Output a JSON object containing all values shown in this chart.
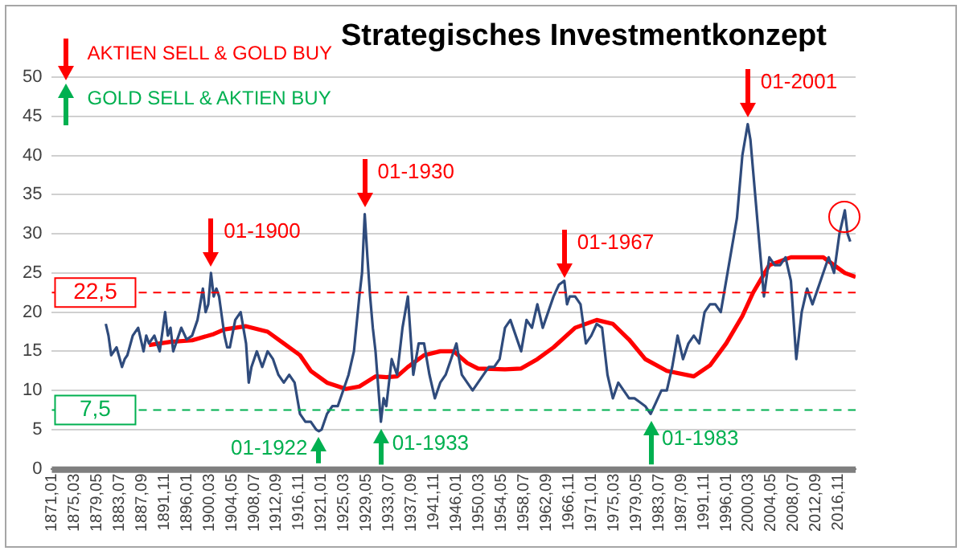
{
  "chart_data": {
    "type": "line",
    "title": "Strategisches Investmentkonzept",
    "xlim": [
      "1871-01",
      "2020-01"
    ],
    "xticks": [
      {
        "value": "1871-01",
        "label": "1871,01"
      },
      {
        "value": "1875-03",
        "label": "1875,03"
      },
      {
        "value": "1879-05",
        "label": "1879,05"
      },
      {
        "value": "1883-07",
        "label": "1883,07"
      },
      {
        "value": "1887-09",
        "label": "1887,09"
      },
      {
        "value": "1891-11",
        "label": "1891,11"
      },
      {
        "value": "1896-01",
        "label": "1896,01"
      },
      {
        "value": "1900-03",
        "label": "1900,03"
      },
      {
        "value": "1904-05",
        "label": "1904,05"
      },
      {
        "value": "1908-07",
        "label": "1908,07"
      },
      {
        "value": "1912-09",
        "label": "1912,09"
      },
      {
        "value": "1916-11",
        "label": "1916,11"
      },
      {
        "value": "1921-01",
        "label": "1921,01"
      },
      {
        "value": "1925-03",
        "label": "1925,03"
      },
      {
        "value": "1929-05",
        "label": "1929,05"
      },
      {
        "value": "1933-07",
        "label": "1933,07"
      },
      {
        "value": "1937-09",
        "label": "1937,09"
      },
      {
        "value": "1941-11",
        "label": "1941,11"
      },
      {
        "value": "1946-01",
        "label": "1946,01"
      },
      {
        "value": "1950-03",
        "label": "1950,03"
      },
      {
        "value": "1954-05",
        "label": "1954,05"
      },
      {
        "value": "1958-07",
        "label": "1958,07"
      },
      {
        "value": "1962-09",
        "label": "1962,09"
      },
      {
        "value": "1966-11",
        "label": "1966,11"
      },
      {
        "value": "1971-01",
        "label": "1971,01"
      },
      {
        "value": "1975-03",
        "label": "1975,03"
      },
      {
        "value": "1979-05",
        "label": "1979,05"
      },
      {
        "value": "1983-07",
        "label": "1983,07"
      },
      {
        "value": "1987-09",
        "label": "1987,09"
      },
      {
        "value": "1991-11",
        "label": "1991,11"
      },
      {
        "value": "1996-01",
        "label": "1996,01"
      },
      {
        "value": "2000-03",
        "label": "2000,03"
      },
      {
        "value": "2004-05",
        "label": "2004,05"
      },
      {
        "value": "2008-07",
        "label": "2008,07"
      },
      {
        "value": "2012-09",
        "label": "2012,09"
      },
      {
        "value": "2016-11",
        "label": "2016,11"
      }
    ],
    "ylim": [
      0,
      50
    ],
    "yticks": [
      0,
      5,
      10,
      15,
      20,
      25,
      30,
      35,
      40,
      45,
      50
    ],
    "grid": "y",
    "legend": false,
    "marker": "none",
    "line_style": "solid",
    "series": [
      {
        "color": "#2f4b7c",
        "x": [
          "1881-01",
          "1881-07",
          "1882-01",
          "1883-01",
          "1884-01",
          "1884-07",
          "1885-01",
          "1886-01",
          "1887-01",
          "1888-01",
          "1888-07",
          "1889-01",
          "1890-01",
          "1891-01",
          "1892-01",
          "1892-07",
          "1893-01",
          "1893-07",
          "1894-01",
          "1895-01",
          "1896-01",
          "1897-01",
          "1898-01",
          "1899-01",
          "1899-07",
          "1900-01",
          "1900-07",
          "1901-01",
          "1901-07",
          "1902-01",
          "1903-01",
          "1903-07",
          "1904-01",
          "1905-01",
          "1906-01",
          "1906-07",
          "1907-01",
          "1907-07",
          "1908-01",
          "1909-01",
          "1910-01",
          "1911-01",
          "1912-01",
          "1913-01",
          "1914-01",
          "1915-01",
          "1916-01",
          "1917-01",
          "1918-01",
          "1919-01",
          "1920-01",
          "1920-07",
          "1921-01",
          "1922-01",
          "1923-01",
          "1924-01",
          "1925-01",
          "1926-01",
          "1927-01",
          "1928-01",
          "1928-07",
          "1929-01",
          "1929-07",
          "1930-01",
          "1930-07",
          "1931-01",
          "1932-01",
          "1932-07",
          "1933-01",
          "1934-01",
          "1935-01",
          "1936-01",
          "1937-01",
          "1937-07",
          "1938-01",
          "1939-01",
          "1940-01",
          "1941-01",
          "1942-01",
          "1943-01",
          "1944-01",
          "1945-01",
          "1946-01",
          "1946-07",
          "1947-01",
          "1948-01",
          "1949-01",
          "1950-01",
          "1951-01",
          "1952-01",
          "1953-01",
          "1954-01",
          "1955-01",
          "1956-01",
          "1957-01",
          "1958-01",
          "1959-01",
          "1960-01",
          "1961-01",
          "1962-01",
          "1963-01",
          "1964-01",
          "1965-01",
          "1966-01",
          "1966-07",
          "1967-01",
          "1968-01",
          "1969-01",
          "1970-01",
          "1971-01",
          "1972-01",
          "1973-01",
          "1974-01",
          "1975-01",
          "1976-01",
          "1977-01",
          "1978-01",
          "1979-01",
          "1980-01",
          "1981-01",
          "1982-01",
          "1983-01",
          "1984-01",
          "1985-01",
          "1986-01",
          "1987-01",
          "1988-01",
          "1989-01",
          "1990-01",
          "1991-01",
          "1992-01",
          "1993-01",
          "1994-01",
          "1995-01",
          "1996-01",
          "1997-01",
          "1998-01",
          "1999-01",
          "2000-01",
          "2000-07",
          "2001-01",
          "2002-01",
          "2003-01",
          "2004-01",
          "2005-01",
          "2006-01",
          "2007-01",
          "2008-01",
          "2009-01",
          "2010-01",
          "2011-01",
          "2012-01",
          "2013-01",
          "2014-01",
          "2015-01",
          "2016-01",
          "2017-01",
          "2018-01",
          "2018-07",
          "2019-01"
        ],
        "values": [
          18.5,
          17,
          14.5,
          15.5,
          13,
          14,
          14.5,
          17,
          18,
          15,
          17,
          16,
          17,
          15,
          20,
          17,
          18,
          15,
          16,
          18,
          16.5,
          17,
          19,
          23,
          20,
          21,
          25,
          22,
          23,
          22,
          17,
          15.5,
          15.5,
          19,
          20,
          18,
          16,
          11,
          13,
          15,
          13,
          15,
          14,
          12,
          11,
          12,
          11,
          7,
          6,
          6,
          5,
          4.8,
          5,
          7,
          8,
          8,
          10,
          12,
          15,
          22,
          25,
          32.5,
          27,
          22,
          18,
          15,
          6,
          9,
          8,
          14,
          12,
          18,
          22,
          17,
          12,
          16,
          16,
          12,
          9,
          11,
          12,
          14,
          16,
          14,
          12,
          11,
          10,
          11,
          12,
          13,
          13,
          14,
          18,
          19,
          17,
          15,
          19,
          18,
          21,
          18,
          20,
          22,
          23.5,
          24,
          21,
          22,
          22,
          21,
          16,
          17,
          18.5,
          18,
          12,
          9,
          11,
          10,
          9,
          9,
          8.5,
          8,
          7,
          8.5,
          10,
          10,
          13,
          17,
          14,
          16,
          17,
          16,
          20,
          21,
          21,
          20,
          24,
          28,
          32,
          40,
          44,
          42,
          38,
          30,
          22,
          27,
          26,
          26,
          27,
          24,
          14,
          20,
          23,
          21,
          23,
          25,
          27,
          25,
          30,
          33,
          30,
          29
        ]
      },
      {
        "color": "#ff0000",
        "x": [
          "1889-01",
          "1893-01",
          "1897-01",
          "1901-01",
          "1903-01",
          "1907-01",
          "1911-01",
          "1914-01",
          "1917-01",
          "1919-01",
          "1922-01",
          "1925-07",
          "1928-01",
          "1931-01",
          "1933-01",
          "1935-01",
          "1937-01",
          "1940-01",
          "1943-01",
          "1945-07",
          "1948-01",
          "1950-01",
          "1955-01",
          "1958-01",
          "1961-01",
          "1964-01",
          "1968-01",
          "1972-01",
          "1975-01",
          "1978-01",
          "1981-01",
          "1985-01",
          "1990-01",
          "1993-01",
          "1996-01",
          "1999-01",
          "2001-01",
          "2004-01",
          "2008-01",
          "2012-01",
          "2014-01",
          "2016-01",
          "2018-01",
          "2020-01"
        ],
        "values": [
          15.8,
          16.2,
          16.4,
          17.2,
          17.8,
          18.2,
          17.5,
          16,
          14.5,
          12.5,
          11,
          10.2,
          10.5,
          11.8,
          11.7,
          11.8,
          13,
          14.5,
          15,
          15,
          13.5,
          12.8,
          12.7,
          12.8,
          14,
          15.5,
          18,
          19,
          18.5,
          16.5,
          14,
          12.5,
          11.8,
          13.2,
          16,
          19.5,
          22.5,
          26,
          27,
          27,
          27,
          26,
          25,
          24.5
        ]
      }
    ],
    "ref_lines": [
      {
        "axis": "y",
        "value": 22.5,
        "label": "22,5",
        "color": "#ff0000",
        "line_style": "dashed"
      },
      {
        "axis": "y",
        "value": 7.5,
        "label": "7,5",
        "color": "#00b050",
        "line_style": "dashed"
      }
    ],
    "annotations": [
      "AKTIEN SELL & GOLD BUY",
      "GOLD SELL & AKTIEN BUY",
      {
        "text": "01-1900",
        "x": "1900-07",
        "y": 25
      },
      {
        "text": "01-1930",
        "x": "1929-01",
        "y": 32.5
      },
      {
        "text": "01-1967",
        "x": "1966-01",
        "y": 23.5
      },
      {
        "text": "01-2001",
        "x": "2000-01",
        "y": 44
      },
      {
        "text": "01-1922",
        "x": "1920-07",
        "y": 4.8
      },
      {
        "text": "01-1933",
        "x": "1932-01",
        "y": 6
      },
      {
        "text": "01-1983",
        "x": "1982-01",
        "y": 7
      }
    ]
  }
}
